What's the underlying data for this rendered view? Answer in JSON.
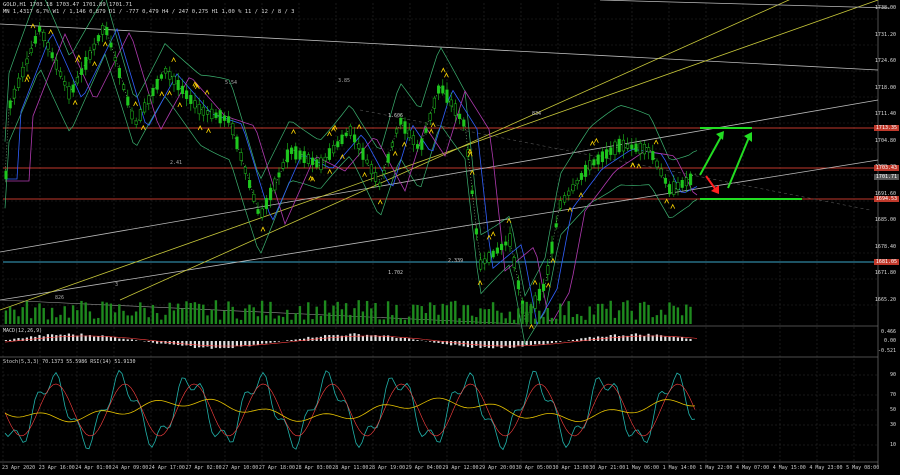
{
  "header": {
    "symbol_line": "GOLD,H1  1703.18 1703.47 1701.89 1701.71",
    "info_line": "MN 1,4317   6,7% W1 / 1,146  0,879   D1 / -777  0,479  H4 / 247  0,275  H1 1,00 %  11 / 12 / 8 / 3"
  },
  "sub1": {
    "label": "MACD(12,26,9)",
    "levels": [
      "0.466",
      "0.00",
      "-0.521"
    ]
  },
  "sub2": {
    "label": "Stoch(5,3,3) 70.1373 55.5986 RSI(14) 51.9130",
    "levels": [
      "90",
      "70",
      "50",
      "30",
      "10"
    ]
  },
  "price_scale": [
    "1738.00",
    "1731.20",
    "1724.60",
    "1718.00",
    "1711.40",
    "1704.80",
    "1698.20",
    "1691.60",
    "1685.00",
    "1678.40",
    "1671.80",
    "1665.20"
  ],
  "price_tags": [
    {
      "text": "1713.35",
      "color": "#c0392b"
    },
    {
      "text": "1703.43",
      "color": "#c0392b"
    },
    {
      "text": "1701.71",
      "color": "#555555"
    },
    {
      "text": "1694.53",
      "color": "#c0392b"
    },
    {
      "text": "1681.05",
      "color": "#c0392b"
    }
  ],
  "annotations": [
    "3.85",
    "5.54",
    "2.41",
    "1.606",
    "834",
    "1.702",
    "2.339",
    "826",
    "3"
  ],
  "time_axis": [
    "23 Apr 2020",
    "23 Apr 16:00",
    "24 Apr 01:00",
    "24 Apr 09:00",
    "24 Apr 17:00",
    "27 Apr 02:00",
    "27 Apr 10:00",
    "27 Apr 18:00",
    "28 Apr 03:00",
    "28 Apr 11:00",
    "28 Apr 19:00",
    "29 Apr 04:00",
    "29 Apr 12:00",
    "29 Apr 20:00",
    "30 Apr 05:00",
    "30 Apr 13:00",
    "30 Apr 21:00",
    "1 May 06:00",
    "1 May 14:00",
    "1 May 22:00",
    "4 May 07:00",
    "4 May 15:00",
    "4 May 23:00",
    "5 May 08:00"
  ],
  "colors": {
    "background": "#000000",
    "candle_up": "#1ec71e",
    "candle_down": "#1ec71e",
    "resistance": "#c0392b",
    "support": "#ff5a5a",
    "arrow_up": "#22dd22",
    "arrow_down": "#ff2020",
    "channel": "#c8c83a"
  }
}
